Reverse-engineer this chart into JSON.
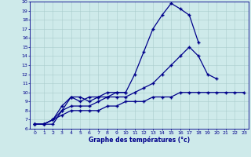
{
  "xlabel": "Graphe des températures (°c)",
  "bg_color": "#ceeaea",
  "line_color": "#00008b",
  "grid_color": "#aacccc",
  "ylim": [
    6,
    20
  ],
  "xlim": [
    -0.5,
    23.5
  ],
  "yticks": [
    6,
    7,
    8,
    9,
    10,
    11,
    12,
    13,
    14,
    15,
    16,
    17,
    18,
    19,
    20
  ],
  "xticks": [
    0,
    1,
    2,
    3,
    4,
    5,
    6,
    7,
    8,
    9,
    10,
    11,
    12,
    13,
    14,
    15,
    16,
    17,
    18,
    19,
    20,
    21,
    22,
    23
  ],
  "line1_x": [
    0,
    1,
    2,
    3,
    4,
    5,
    6,
    7,
    8,
    9,
    10,
    11,
    12,
    13,
    14,
    15,
    16,
    17,
    18
  ],
  "line1_y": [
    6.5,
    6.5,
    6.5,
    8.0,
    9.5,
    9.5,
    9.0,
    9.5,
    9.5,
    10.0,
    10.0,
    12.0,
    14.5,
    17.0,
    18.5,
    19.8,
    19.2,
    18.5,
    15.5
  ],
  "line2_x": [
    0,
    1,
    2,
    3,
    4,
    5,
    6,
    7,
    8,
    9,
    10
  ],
  "line2_y": [
    6.5,
    6.5,
    7.0,
    8.5,
    9.5,
    9.0,
    9.5,
    9.5,
    10.0,
    10.0,
    10.0
  ],
  "line3_x": [
    0,
    1,
    2,
    3,
    4,
    5,
    6,
    7,
    8,
    9,
    10,
    11,
    12,
    13,
    14,
    15,
    16,
    17,
    18,
    19,
    20
  ],
  "line3_y": [
    6.5,
    6.5,
    7.0,
    8.0,
    8.5,
    8.5,
    8.5,
    9.0,
    9.5,
    9.5,
    9.5,
    10.0,
    10.5,
    11.0,
    12.0,
    13.0,
    14.0,
    15.0,
    14.0,
    12.0,
    11.5
  ],
  "line4_x": [
    0,
    1,
    2,
    3,
    4,
    5,
    6,
    7,
    8,
    9,
    10,
    11,
    12,
    13,
    14,
    15,
    16,
    17,
    18,
    19,
    20,
    21,
    22,
    23
  ],
  "line4_y": [
    6.5,
    6.5,
    7.0,
    7.5,
    8.0,
    8.0,
    8.0,
    8.0,
    8.5,
    8.5,
    9.0,
    9.0,
    9.0,
    9.5,
    9.5,
    9.5,
    10.0,
    10.0,
    10.0,
    10.0,
    10.0,
    10.0,
    10.0,
    10.0
  ]
}
